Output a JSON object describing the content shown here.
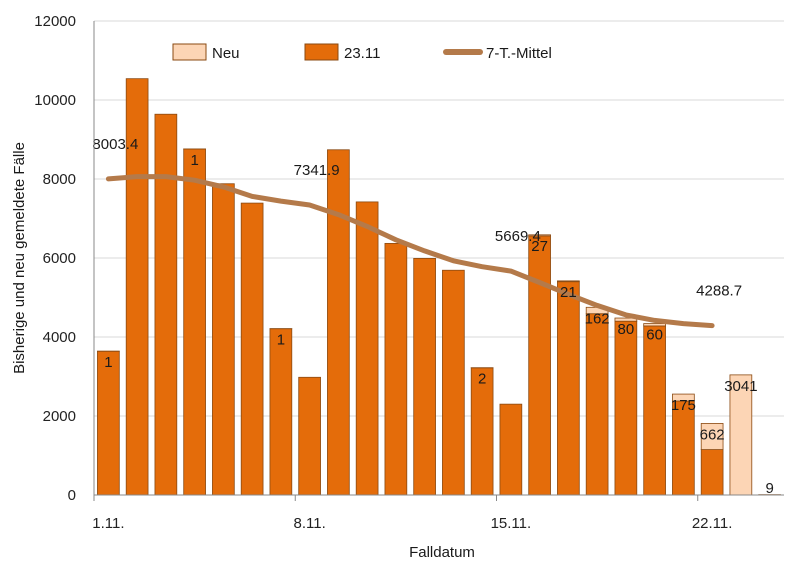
{
  "chart_data": {
    "type": "bar",
    "xlabel": "Falldatum",
    "ylabel": "Bisherige und neu gemeldete Fälle",
    "ylim": [
      0,
      12000
    ],
    "yticks": [
      "0",
      "2000",
      "4000",
      "6000",
      "8000",
      "10000",
      "12000"
    ],
    "xticks": [
      {
        "index": 0,
        "label": "1.11."
      },
      {
        "index": 7,
        "label": "8.11."
      },
      {
        "index": 14,
        "label": "15.11."
      },
      {
        "index": 21,
        "label": "22.11."
      }
    ],
    "grid": "horizontal",
    "legend_position": "top",
    "legend": {
      "new": "Neu",
      "previous": "23.11",
      "avg": "7-T.-Mittel"
    },
    "colors": {
      "previous": "#E46C0A",
      "new": "#FCD5B5",
      "avg": "#B47A4A",
      "bar_edge": "#8A4A12",
      "grid": "#D9D9D9"
    },
    "categories": [
      "1.11.",
      "2.11.",
      "3.11.",
      "4.11.",
      "5.11.",
      "6.11.",
      "7.11.",
      "8.11.",
      "9.11.",
      "10.11.",
      "11.11.",
      "12.11.",
      "13.11.",
      "14.11.",
      "15.11.",
      "16.11.",
      "17.11.",
      "18.11.",
      "19.11.",
      "20.11.",
      "21.11.",
      "22.11.",
      "23.11.",
      "24.11."
    ],
    "series": [
      {
        "name": "23.11",
        "values": [
          3640,
          10540,
          9640,
          8760,
          7880,
          7390,
          4210,
          2980,
          8740,
          7420,
          6370,
          5990,
          5690,
          3220,
          2300,
          6560,
          5400,
          4590,
          4400,
          4280,
          2380,
          1150,
          0,
          0
        ]
      },
      {
        "name": "Neu",
        "values": [
          1,
          0,
          0,
          1,
          0,
          0,
          1,
          0,
          0,
          0,
          0,
          0,
          0,
          2,
          0,
          27,
          21,
          162,
          80,
          60,
          175,
          662,
          3041,
          9
        ]
      },
      {
        "name": "7-T.-Mittel",
        "values": [
          8003.4,
          8060,
          8060,
          7970,
          7800,
          7560,
          7440,
          7341.9,
          7100,
          6800,
          6460,
          6180,
          5930,
          5780,
          5669.4,
          5380,
          5080,
          4800,
          4560,
          4420,
          4340,
          4288.7,
          null,
          null
        ]
      }
    ],
    "new_labels": [
      {
        "index": 0,
        "text": "1"
      },
      {
        "index": 3,
        "text": "1"
      },
      {
        "index": 6,
        "text": "1"
      },
      {
        "index": 13,
        "text": "2"
      },
      {
        "index": 15,
        "text": "27"
      },
      {
        "index": 16,
        "text": "21"
      },
      {
        "index": 17,
        "text": "162"
      },
      {
        "index": 18,
        "text": "80"
      },
      {
        "index": 19,
        "text": "60"
      },
      {
        "index": 20,
        "text": "175"
      },
      {
        "index": 21,
        "text": "662"
      },
      {
        "index": 22,
        "text": "3041"
      },
      {
        "index": 23,
        "text": "9"
      }
    ],
    "avg_labels": [
      {
        "index": 0,
        "text": "8003.4"
      },
      {
        "index": 7,
        "text": "7341.9"
      },
      {
        "index": 14,
        "text": "5669.4"
      },
      {
        "index": 21,
        "text": "4288.7"
      }
    ]
  }
}
